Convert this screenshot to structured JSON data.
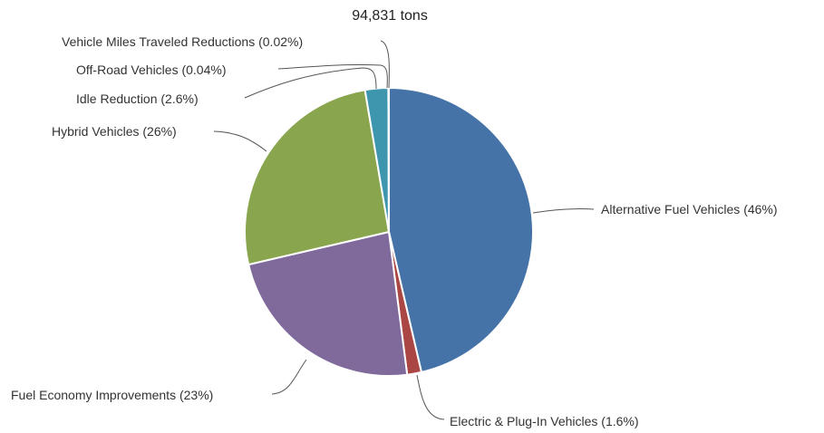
{
  "chart_data": {
    "type": "pie",
    "title": "94,831 tons",
    "start_angle_deg": 0,
    "direction": "clockwise",
    "slices": [
      {
        "label": "Alternative Fuel Vehicles (46%)",
        "value": 46.4,
        "color": "#4573a7"
      },
      {
        "label": "Electric & Plug-In Vehicles (1.6%)",
        "value": 1.6,
        "color": "#aa4643"
      },
      {
        "label": "Fuel Economy Improvements (23%)",
        "value": 23.4,
        "color": "#7f6a9b"
      },
      {
        "label": "Hybrid Vehicles (26%)",
        "value": 26.0,
        "color": "#89a54e"
      },
      {
        "label": "Idle Reduction (2.6%)",
        "value": 2.6,
        "color": "#3d96ae"
      },
      {
        "label": "Off-Road Vehicles (0.04%)",
        "value": 0.04,
        "color": "#db843d"
      },
      {
        "label": "Vehicle Miles Traveled Reductions (0.02%)",
        "value": 0.02,
        "color": "#92a8cd"
      }
    ]
  }
}
